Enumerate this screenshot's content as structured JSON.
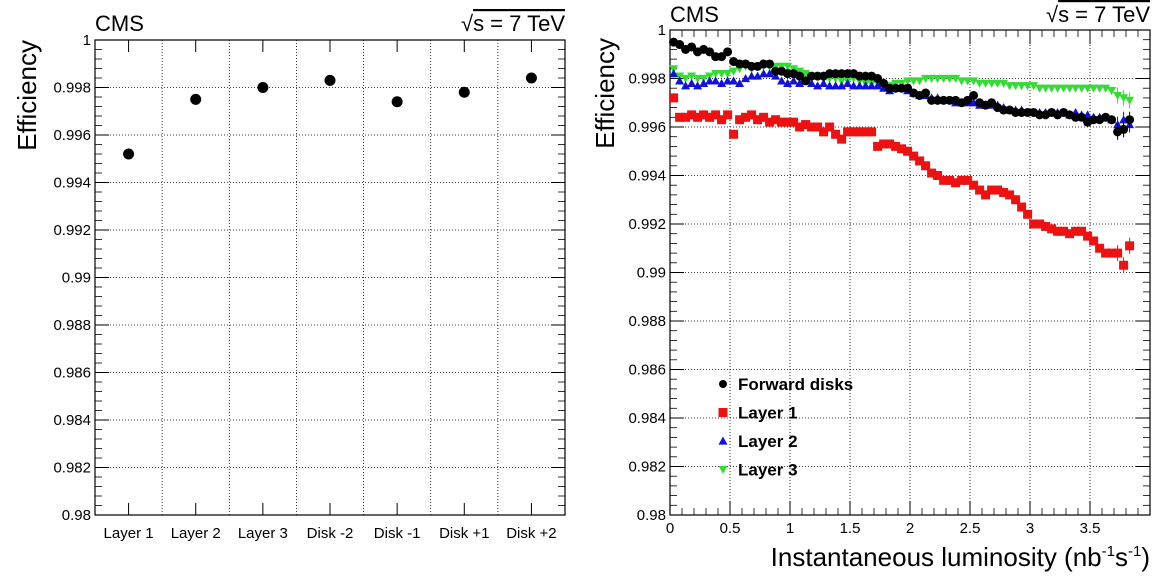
{
  "chart_data": [
    {
      "type": "scatter",
      "experiment": "CMS",
      "energy_label": "s = 7 TeV",
      "energy_sqrt_symbol": "√",
      "ylabel": "Efficiency",
      "xlabel": "",
      "ylim": [
        0.98,
        1.0
      ],
      "yticks": [
        "0.98",
        "0.982",
        "0.984",
        "0.986",
        "0.988",
        "0.99",
        "0.992",
        "0.994",
        "0.996",
        "0.998",
        "1"
      ],
      "categories": [
        "Layer 1",
        "Layer 2",
        "Layer 3",
        "Disk -2",
        "Disk -1",
        "Disk +1",
        "Disk +2"
      ],
      "values": [
        0.9952,
        0.9975,
        0.998,
        0.9983,
        0.9974,
        0.9978,
        0.9984
      ],
      "grid": true,
      "marker_color": "#000000"
    },
    {
      "type": "scatter",
      "experiment": "CMS",
      "energy_label": "s = 7 TeV",
      "energy_sqrt_symbol": "√",
      "ylabel": "Efficiency",
      "xlabel_parts": [
        "Instantaneous luminosity (nb",
        "-1",
        "s",
        "-1",
        ")"
      ],
      "xlim": [
        0,
        4.0
      ],
      "ylim": [
        0.98,
        1.0
      ],
      "xticks": [
        "0",
        "0.5",
        "1",
        "1.5",
        "2",
        "2.5",
        "3",
        "3.5"
      ],
      "yticks": [
        "0.98",
        "0.982",
        "0.984",
        "0.986",
        "0.988",
        "0.99",
        "0.992",
        "0.994",
        "0.996",
        "0.998",
        "1"
      ],
      "grid": true,
      "legend_position": "bottom-left",
      "series": [
        {
          "name": "Forward disks",
          "marker": "circle",
          "color": "#000000",
          "x": [
            0.03,
            0.08,
            0.13,
            0.18,
            0.23,
            0.28,
            0.33,
            0.38,
            0.43,
            0.48,
            0.53,
            0.58,
            0.63,
            0.68,
            0.73,
            0.78,
            0.83,
            0.88,
            0.93,
            0.98,
            1.03,
            1.08,
            1.13,
            1.18,
            1.23,
            1.28,
            1.33,
            1.38,
            1.43,
            1.48,
            1.53,
            1.58,
            1.63,
            1.68,
            1.73,
            1.78,
            1.83,
            1.88,
            1.93,
            1.98,
            2.03,
            2.08,
            2.13,
            2.18,
            2.23,
            2.28,
            2.33,
            2.38,
            2.43,
            2.48,
            2.53,
            2.58,
            2.63,
            2.68,
            2.73,
            2.78,
            2.83,
            2.88,
            2.93,
            2.98,
            3.03,
            3.08,
            3.13,
            3.18,
            3.23,
            3.28,
            3.33,
            3.38,
            3.43,
            3.48,
            3.53,
            3.58,
            3.63,
            3.68,
            3.73,
            3.78,
            3.83
          ],
          "y": [
            0.9995,
            0.9994,
            0.9992,
            0.9993,
            0.9991,
            0.9992,
            0.9991,
            0.9989,
            0.9989,
            0.9991,
            0.9987,
            0.9986,
            0.9986,
            0.9985,
            0.9985,
            0.9986,
            0.9986,
            0.9983,
            0.9983,
            0.9982,
            0.9982,
            0.9981,
            0.9979,
            0.9981,
            0.9981,
            0.9981,
            0.9982,
            0.9982,
            0.9982,
            0.9982,
            0.9982,
            0.9981,
            0.9981,
            0.9981,
            0.998,
            0.9978,
            0.9976,
            0.9976,
            0.9976,
            0.9976,
            0.9974,
            0.9973,
            0.9974,
            0.9971,
            0.9971,
            0.9971,
            0.9971,
            0.9971,
            0.997,
            0.9971,
            0.9973,
            0.997,
            0.9969,
            0.997,
            0.9968,
            0.9967,
            0.9967,
            0.9966,
            0.9966,
            0.9966,
            0.9966,
            0.9965,
            0.9965,
            0.9966,
            0.9965,
            0.9966,
            0.9965,
            0.9964,
            0.9964,
            0.9962,
            0.9963,
            0.9963,
            0.9964,
            0.9963,
            0.9958,
            0.9959,
            0.9963
          ]
        },
        {
          "name": "Layer 1",
          "marker": "square",
          "color": "#ee1111",
          "x": [
            0.03,
            0.08,
            0.13,
            0.18,
            0.23,
            0.28,
            0.33,
            0.38,
            0.43,
            0.48,
            0.53,
            0.58,
            0.63,
            0.68,
            0.73,
            0.78,
            0.83,
            0.88,
            0.93,
            0.98,
            1.03,
            1.08,
            1.13,
            1.18,
            1.23,
            1.28,
            1.33,
            1.38,
            1.43,
            1.48,
            1.53,
            1.58,
            1.63,
            1.68,
            1.73,
            1.78,
            1.83,
            1.88,
            1.93,
            1.98,
            2.03,
            2.08,
            2.13,
            2.18,
            2.23,
            2.28,
            2.33,
            2.38,
            2.43,
            2.48,
            2.53,
            2.58,
            2.63,
            2.68,
            2.73,
            2.78,
            2.83,
            2.88,
            2.93,
            2.98,
            3.03,
            3.08,
            3.13,
            3.18,
            3.23,
            3.28,
            3.33,
            3.38,
            3.43,
            3.48,
            3.53,
            3.58,
            3.63,
            3.68,
            3.73,
            3.78,
            3.83
          ],
          "y": [
            0.9972,
            0.9964,
            0.9964,
            0.9965,
            0.9964,
            0.9965,
            0.9964,
            0.9965,
            0.9963,
            0.9965,
            0.9957,
            0.9963,
            0.9964,
            0.9965,
            0.9963,
            0.9964,
            0.9962,
            0.9963,
            0.9962,
            0.9962,
            0.9962,
            0.996,
            0.9961,
            0.996,
            0.996,
            0.9958,
            0.996,
            0.9957,
            0.9955,
            0.9958,
            0.9958,
            0.9958,
            0.9958,
            0.9958,
            0.9952,
            0.9953,
            0.9953,
            0.9952,
            0.9951,
            0.995,
            0.9948,
            0.9946,
            0.9944,
            0.9941,
            0.994,
            0.9938,
            0.9938,
            0.9937,
            0.9938,
            0.9938,
            0.9936,
            0.9934,
            0.9932,
            0.9934,
            0.9934,
            0.9933,
            0.9932,
            0.993,
            0.9927,
            0.9924,
            0.992,
            0.992,
            0.9919,
            0.9918,
            0.9917,
            0.9917,
            0.9916,
            0.9917,
            0.9917,
            0.9915,
            0.9913,
            0.991,
            0.9908,
            0.9908,
            0.9908,
            0.9903,
            0.9911
          ]
        },
        {
          "name": "Layer 2",
          "marker": "triangle-up",
          "color": "#1111dd",
          "x": [
            0.03,
            0.08,
            0.13,
            0.18,
            0.23,
            0.28,
            0.33,
            0.38,
            0.43,
            0.48,
            0.53,
            0.58,
            0.63,
            0.68,
            0.73,
            0.78,
            0.83,
            0.88,
            0.93,
            0.98,
            1.03,
            1.08,
            1.13,
            1.18,
            1.23,
            1.28,
            1.33,
            1.38,
            1.43,
            1.48,
            1.53,
            1.58,
            1.63,
            1.68,
            1.73,
            1.78,
            1.83,
            1.88,
            1.93,
            1.98,
            2.03,
            2.08,
            2.13,
            2.18,
            2.23,
            2.28,
            2.33,
            2.38,
            2.43,
            2.48,
            2.53,
            2.58,
            2.63,
            2.68,
            2.73,
            2.78,
            2.83,
            2.88,
            2.93,
            2.98,
            3.03,
            3.08,
            3.13,
            3.18,
            3.23,
            3.28,
            3.33,
            3.38,
            3.43,
            3.48,
            3.53,
            3.58,
            3.63,
            3.68,
            3.73,
            3.78,
            3.83
          ],
          "y": [
            0.9982,
            0.9979,
            0.9977,
            0.9978,
            0.9977,
            0.9978,
            0.9979,
            0.9979,
            0.9978,
            0.9979,
            0.9979,
            0.9978,
            0.998,
            0.9981,
            0.9981,
            0.9982,
            0.9982,
            0.9981,
            0.9979,
            0.9978,
            0.9979,
            0.9978,
            0.9979,
            0.9978,
            0.9977,
            0.9978,
            0.9977,
            0.9977,
            0.9977,
            0.9978,
            0.9977,
            0.9977,
            0.9977,
            0.9977,
            0.9977,
            0.9976,
            0.9975,
            0.9976,
            0.9976,
            0.9975,
            0.9974,
            0.9973,
            0.9973,
            0.9972,
            0.9972,
            0.9971,
            0.9971,
            0.997,
            0.997,
            0.997,
            0.997,
            0.9969,
            0.9969,
            0.9969,
            0.9969,
            0.9968,
            0.9967,
            0.9967,
            0.9967,
            0.9966,
            0.9966,
            0.9966,
            0.9966,
            0.9966,
            0.9966,
            0.9966,
            0.9965,
            0.9966,
            0.9965,
            0.9965,
            0.9964,
            0.9964,
            0.9964,
            0.9963,
            0.9961,
            0.9963,
            0.9961
          ]
        },
        {
          "name": "Layer 3",
          "marker": "triangle-down",
          "color": "#33dd33",
          "x": [
            0.03,
            0.08,
            0.13,
            0.18,
            0.23,
            0.28,
            0.33,
            0.38,
            0.43,
            0.48,
            0.53,
            0.58,
            0.63,
            0.68,
            0.73,
            0.78,
            0.83,
            0.88,
            0.93,
            0.98,
            1.03,
            1.08,
            1.13,
            1.18,
            1.23,
            1.28,
            1.33,
            1.38,
            1.43,
            1.48,
            1.53,
            1.58,
            1.63,
            1.68,
            1.73,
            1.78,
            1.83,
            1.88,
            1.93,
            1.98,
            2.03,
            2.08,
            2.13,
            2.18,
            2.23,
            2.28,
            2.33,
            2.38,
            2.43,
            2.48,
            2.53,
            2.58,
            2.63,
            2.68,
            2.73,
            2.78,
            2.83,
            2.88,
            2.93,
            2.98,
            3.03,
            3.08,
            3.13,
            3.18,
            3.23,
            3.28,
            3.33,
            3.38,
            3.43,
            3.48,
            3.53,
            3.58,
            3.63,
            3.68,
            3.73,
            3.78,
            3.83
          ],
          "y": [
            0.9984,
            0.9981,
            0.998,
            0.9981,
            0.998,
            0.998,
            0.9981,
            0.9982,
            0.9982,
            0.9982,
            0.9983,
            0.9984,
            0.9985,
            0.9984,
            0.9985,
            0.9985,
            0.9985,
            0.9985,
            0.9985,
            0.9985,
            0.9984,
            0.9983,
            0.9982,
            0.9981,
            0.9981,
            0.998,
            0.998,
            0.998,
            0.9979,
            0.9979,
            0.998,
            0.9979,
            0.9978,
            0.9978,
            0.9978,
            0.9977,
            0.9977,
            0.9978,
            0.9978,
            0.9979,
            0.9979,
            0.9979,
            0.998,
            0.998,
            0.998,
            0.998,
            0.998,
            0.998,
            0.9979,
            0.9979,
            0.9979,
            0.9978,
            0.9978,
            0.9978,
            0.9978,
            0.9978,
            0.9977,
            0.9977,
            0.9977,
            0.9977,
            0.9977,
            0.9976,
            0.9976,
            0.9976,
            0.9976,
            0.9976,
            0.9976,
            0.9976,
            0.9976,
            0.9976,
            0.9976,
            0.9976,
            0.9976,
            0.9975,
            0.9973,
            0.9972,
            0.9971
          ]
        }
      ]
    }
  ]
}
